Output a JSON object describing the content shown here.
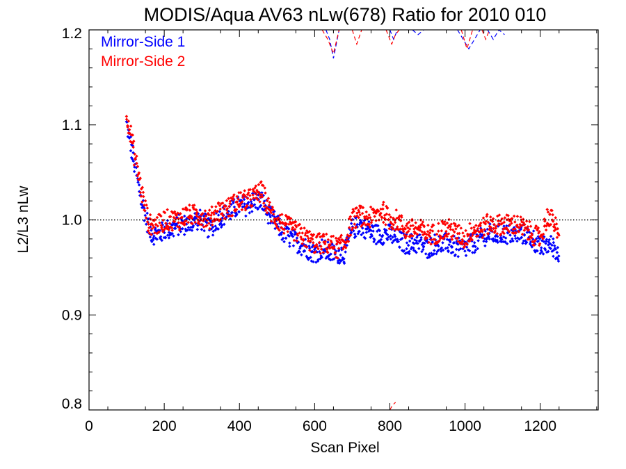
{
  "chart_data": {
    "type": "scatter",
    "title": "MODIS/Aqua AV63 nLw(678) Ratio for 2010 010",
    "xlabel": "Scan Pixel",
    "ylabel": "L2/L3 nLw",
    "xlim": [
      0,
      1354
    ],
    "ylim": [
      0.8,
      1.2
    ],
    "xticks": [
      "0",
      "200",
      "400",
      "600",
      "800",
      "1000",
      "1200"
    ],
    "yticks": [
      "0.8",
      "0.9",
      "1.0",
      "1.1",
      "1.2"
    ],
    "reference_line": 1.0,
    "legend_position": "top-left",
    "colors": {
      "side1": "#0000ff",
      "side2": "#ff0000",
      "reference": "#000000"
    },
    "series": [
      {
        "name": "Mirror-Side 1",
        "color": "#0000ff",
        "points": {
          "x": [
            100,
            110,
            120,
            130,
            140,
            150,
            160,
            170,
            180,
            190,
            200,
            220,
            240,
            260,
            280,
            300,
            320,
            340,
            360,
            380,
            400,
            420,
            440,
            460,
            480,
            500,
            520,
            540,
            560,
            580,
            600,
            620,
            640,
            660,
            680,
            700,
            720,
            740,
            760,
            780,
            800,
            820,
            840,
            860,
            880,
            900,
            920,
            940,
            960,
            980,
            1000,
            1020,
            1040,
            1060,
            1080,
            1100,
            1120,
            1140,
            1160,
            1180,
            1200,
            1220,
            1240,
            1250
          ],
          "y": [
            1.1,
            1.08,
            1.06,
            1.04,
            1.02,
            1.005,
            0.99,
            0.985,
            0.985,
            0.985,
            0.99,
            0.99,
            0.995,
            0.995,
            1.0,
            1.0,
            0.99,
            1.0,
            1.005,
            1.01,
            1.015,
            1.015,
            1.02,
            1.02,
            1.005,
            0.995,
            0.985,
            0.98,
            0.975,
            0.97,
            0.965,
            0.97,
            0.965,
            0.965,
            0.965,
            0.99,
            0.995,
            0.99,
            0.985,
            0.985,
            0.985,
            0.98,
            0.975,
            0.975,
            0.975,
            0.97,
            0.975,
            0.975,
            0.975,
            0.97,
            0.97,
            0.975,
            0.98,
            0.985,
            0.985,
            0.985,
            0.985,
            0.985,
            0.985,
            0.98,
            0.97,
            0.975,
            0.97,
            0.96
          ]
        },
        "dashed": [
          {
            "x": [
              630,
              640,
              650,
              660,
              665
            ],
            "y": [
              1.2,
              1.19,
              1.17,
              1.19,
              1.2
            ]
          },
          {
            "x": [
              800,
              810,
              820
            ],
            "y": [
              1.2,
              1.19,
              1.2
            ]
          },
          {
            "x": [
              860,
              875,
              890
            ],
            "y": [
              1.2,
              1.195,
              1.2
            ]
          },
          {
            "x": [
              980,
              995,
              1010,
              1025,
              1040
            ],
            "y": [
              1.2,
              1.19,
              1.18,
              1.19,
              1.2
            ]
          },
          {
            "x": [
              1060,
              1075,
              1090,
              1105
            ],
            "y": [
              1.2,
              1.19,
              1.2,
              1.195
            ]
          }
        ]
      },
      {
        "name": "Mirror-Side 2",
        "color": "#ff0000",
        "points": {
          "x": [
            100,
            110,
            120,
            130,
            140,
            150,
            160,
            170,
            180,
            190,
            200,
            220,
            240,
            260,
            280,
            300,
            320,
            340,
            360,
            380,
            400,
            420,
            440,
            460,
            480,
            500,
            520,
            540,
            560,
            580,
            600,
            620,
            640,
            660,
            680,
            700,
            720,
            740,
            760,
            780,
            800,
            820,
            840,
            860,
            880,
            900,
            920,
            940,
            960,
            980,
            1000,
            1020,
            1040,
            1060,
            1080,
            1100,
            1120,
            1140,
            1160,
            1180,
            1200,
            1220,
            1240,
            1250
          ],
          "y": [
            1.115,
            1.09,
            1.07,
            1.05,
            1.03,
            1.01,
            0.995,
            0.995,
            0.995,
            0.995,
            1.0,
            1.0,
            1.0,
            1.005,
            1.005,
            1.005,
            1.0,
            1.01,
            1.01,
            1.015,
            1.02,
            1.02,
            1.025,
            1.03,
            1.01,
            1.0,
            0.995,
            0.99,
            0.985,
            0.98,
            0.975,
            0.975,
            0.975,
            0.97,
            0.975,
            1.0,
            1.005,
            1.0,
            1.005,
            1.01,
            1.0,
            1.0,
            0.99,
            0.99,
            0.99,
            0.985,
            0.985,
            0.99,
            0.99,
            0.985,
            0.98,
            0.99,
            0.99,
            0.995,
            0.995,
            0.995,
            0.995,
            0.995,
            0.99,
            0.985,
            0.98,
            1.005,
            0.995,
            0.975
          ]
        },
        "dashed": [
          {
            "x": [
              620,
              635,
              650,
              665
            ],
            "y": [
              1.2,
              1.19,
              1.175,
              1.2
            ]
          },
          {
            "x": [
              700,
              712,
              725
            ],
            "y": [
              1.2,
              1.185,
              1.2
            ]
          },
          {
            "x": [
              790,
              805,
              815,
              825
            ],
            "y": [
              1.2,
              1.185,
              1.195,
              1.2
            ]
          },
          {
            "x": [
              990,
              1005,
              1020
            ],
            "y": [
              1.2,
              1.18,
              1.2
            ]
          },
          {
            "x": [
              1045,
              1055,
              1065
            ],
            "y": [
              1.2,
              1.19,
              1.2
            ]
          },
          {
            "x": [
              800,
              807,
              815
            ],
            "y": [
              0.8,
              0.805,
              0.808
            ]
          }
        ]
      }
    ]
  }
}
